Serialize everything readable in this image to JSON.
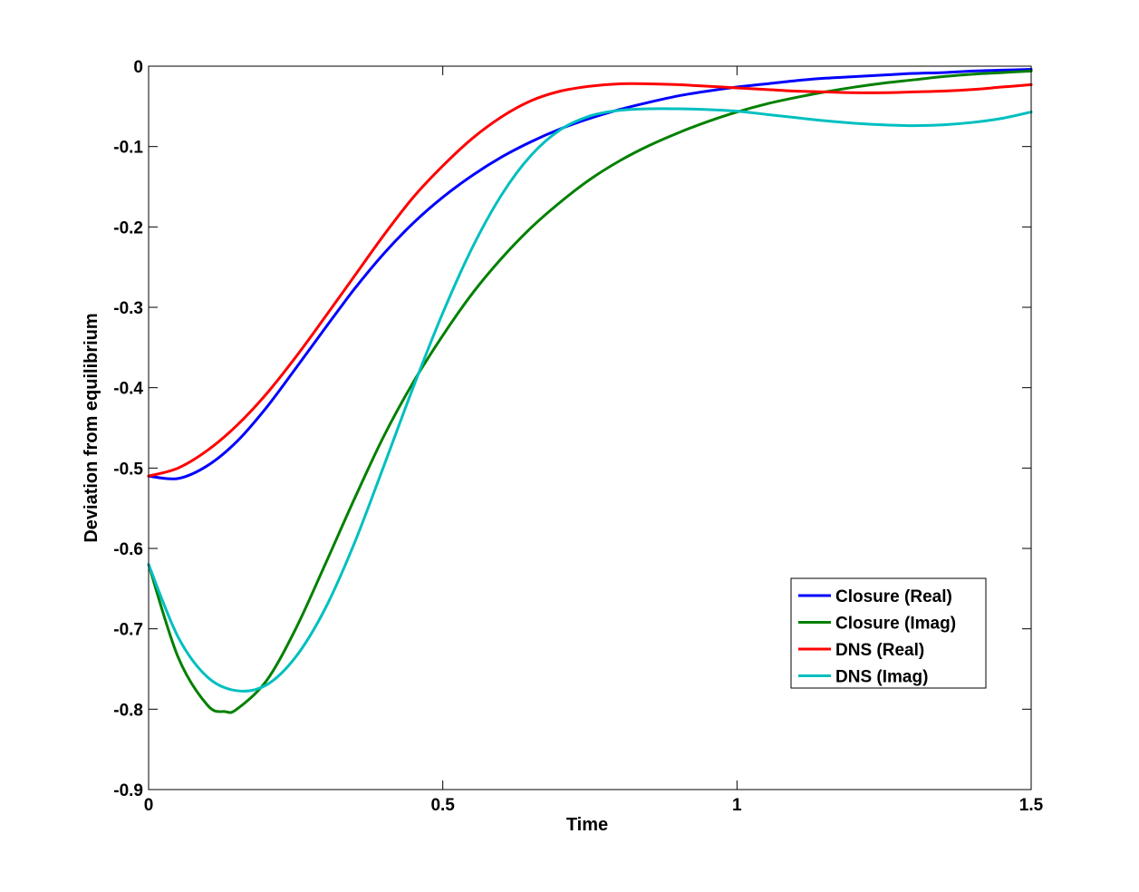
{
  "chart_data": {
    "type": "line",
    "title": "",
    "xlabel": "Time",
    "ylabel": "Deviation from equilibrium",
    "xlim": [
      0,
      1.5
    ],
    "ylim": [
      -0.9,
      0
    ],
    "grid": false,
    "legend_position": "bottom-right",
    "x_ticks": [
      0,
      0.5,
      1,
      1.5
    ],
    "x_tick_labels": [
      "0",
      "0.5",
      "1",
      "1.5"
    ],
    "y_ticks": [
      0,
      -0.1,
      -0.2,
      -0.3,
      -0.4,
      -0.5,
      -0.6,
      -0.7,
      -0.8,
      -0.9
    ],
    "y_tick_labels": [
      "0",
      "-0.1",
      "-0.2",
      "-0.3",
      "-0.4",
      "-0.5",
      "-0.6",
      "-0.7",
      "-0.8",
      "-0.9"
    ],
    "series": [
      {
        "name": "Closure (Real)",
        "color": "#0000ff",
        "x": [
          0,
          0.05,
          0.1,
          0.15,
          0.2,
          0.25,
          0.3,
          0.35,
          0.4,
          0.45,
          0.5,
          0.55,
          0.6,
          0.65,
          0.7,
          0.75,
          0.8,
          0.85,
          0.9,
          0.95,
          1.0,
          1.05,
          1.1,
          1.15,
          1.2,
          1.25,
          1.3,
          1.35,
          1.4,
          1.45,
          1.5
        ],
        "y": [
          -0.51,
          -0.513,
          -0.497,
          -0.467,
          -0.425,
          -0.376,
          -0.326,
          -0.277,
          -0.233,
          -0.195,
          -0.163,
          -0.136,
          -0.113,
          -0.094,
          -0.078,
          -0.065,
          -0.054,
          -0.045,
          -0.037,
          -0.031,
          -0.026,
          -0.022,
          -0.018,
          -0.015,
          -0.013,
          -0.011,
          -0.009,
          -0.008,
          -0.006,
          -0.005,
          -0.004
        ]
      },
      {
        "name": "Closure (Imag)",
        "color": "#008000",
        "x": [
          0,
          0.05,
          0.1,
          0.13,
          0.15,
          0.2,
          0.25,
          0.3,
          0.35,
          0.4,
          0.45,
          0.5,
          0.55,
          0.6,
          0.65,
          0.7,
          0.75,
          0.8,
          0.85,
          0.9,
          0.95,
          1.0,
          1.05,
          1.1,
          1.15,
          1.2,
          1.25,
          1.3,
          1.35,
          1.4,
          1.45,
          1.5
        ],
        "y": [
          -0.62,
          -0.735,
          -0.795,
          -0.803,
          -0.8,
          -0.765,
          -0.7,
          -0.62,
          -0.538,
          -0.46,
          -0.393,
          -0.335,
          -0.283,
          -0.239,
          -0.201,
          -0.169,
          -0.141,
          -0.118,
          -0.099,
          -0.083,
          -0.069,
          -0.057,
          -0.047,
          -0.039,
          -0.032,
          -0.026,
          -0.021,
          -0.017,
          -0.013,
          -0.01,
          -0.008,
          -0.006
        ]
      },
      {
        "name": "DNS (Real)",
        "color": "#ff0000",
        "x": [
          0,
          0.05,
          0.1,
          0.15,
          0.2,
          0.25,
          0.3,
          0.35,
          0.4,
          0.45,
          0.5,
          0.55,
          0.6,
          0.65,
          0.7,
          0.75,
          0.8,
          0.85,
          0.9,
          0.95,
          1.0,
          1.05,
          1.1,
          1.15,
          1.2,
          1.25,
          1.3,
          1.35,
          1.4,
          1.45,
          1.5
        ],
        "y": [
          -0.51,
          -0.5,
          -0.478,
          -0.447,
          -0.408,
          -0.362,
          -0.312,
          -0.261,
          -0.21,
          -0.163,
          -0.124,
          -0.09,
          -0.063,
          -0.043,
          -0.031,
          -0.025,
          -0.022,
          -0.022,
          -0.023,
          -0.025,
          -0.027,
          -0.029,
          -0.031,
          -0.032,
          -0.033,
          -0.033,
          -0.032,
          -0.031,
          -0.029,
          -0.026,
          -0.023
        ]
      },
      {
        "name": "DNS (Imag)",
        "color": "#00bfbf",
        "x": [
          0,
          0.05,
          0.1,
          0.15,
          0.2,
          0.25,
          0.3,
          0.35,
          0.4,
          0.45,
          0.5,
          0.55,
          0.6,
          0.65,
          0.7,
          0.75,
          0.8,
          0.85,
          0.9,
          0.95,
          1.0,
          1.05,
          1.1,
          1.15,
          1.2,
          1.25,
          1.3,
          1.35,
          1.4,
          1.45,
          1.5
        ],
        "y": [
          -0.62,
          -0.71,
          -0.76,
          -0.777,
          -0.77,
          -0.735,
          -0.675,
          -0.593,
          -0.497,
          -0.399,
          -0.307,
          -0.226,
          -0.16,
          -0.111,
          -0.079,
          -0.062,
          -0.055,
          -0.053,
          -0.053,
          -0.054,
          -0.056,
          -0.06,
          -0.064,
          -0.068,
          -0.071,
          -0.073,
          -0.074,
          -0.073,
          -0.07,
          -0.065,
          -0.057
        ]
      }
    ]
  }
}
